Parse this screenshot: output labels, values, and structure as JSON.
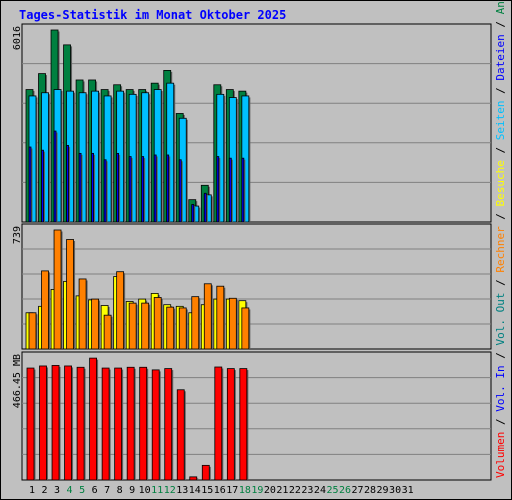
{
  "title": "Tages-Statistik im Monat Oktober 2025",
  "colors": {
    "anfragen": "#008040",
    "dateien": "#0000ff",
    "seiten": "#00c0ff",
    "besuche": "#ffff00",
    "rechner": "#ff8000",
    "volumen": "#ff0000",
    "out": "#008080",
    "in": "#0000ff",
    "weekend": "#008040",
    "weekday": "#000000",
    "separator": "#000000"
  },
  "chart_data": [
    {
      "type": "bar",
      "name": "top-panel",
      "ylabel": "6016",
      "ylim": [
        0,
        6016
      ],
      "categories": [
        "1",
        "2",
        "3",
        "4",
        "5",
        "6",
        "7",
        "8",
        "9",
        "10",
        "11",
        "12",
        "13",
        "14",
        "15",
        "16",
        "17",
        "18",
        "19",
        "20",
        "21",
        "22",
        "23",
        "24",
        "25",
        "26",
        "27",
        "28",
        "29",
        "30",
        "31"
      ],
      "weekend": [
        4,
        5,
        11,
        12,
        18,
        19,
        25,
        26
      ],
      "series": [
        {
          "name": "Anfragen",
          "values": [
            4150,
            4650,
            6016,
            5550,
            4450,
            4450,
            4150,
            4300,
            4150,
            4150,
            4350,
            4750,
            3400,
            700,
            1150,
            4300,
            4150,
            4100,
            0,
            0,
            0,
            0,
            0,
            0,
            0,
            0,
            0,
            0,
            0,
            0,
            0
          ]
        },
        {
          "name": "Dateien",
          "values": [
            2350,
            2250,
            2850,
            2400,
            2150,
            2150,
            1950,
            2150,
            2050,
            2050,
            2100,
            2100,
            1950,
            550,
            900,
            2050,
            2000,
            2000,
            0,
            0,
            0,
            0,
            0,
            0,
            0,
            0,
            0,
            0,
            0,
            0,
            0
          ]
        },
        {
          "name": "Seiten",
          "values": [
            3950,
            4050,
            4150,
            4100,
            4050,
            4100,
            3950,
            4100,
            4000,
            4050,
            4150,
            4350,
            3250,
            500,
            850,
            4000,
            3900,
            3950,
            0,
            0,
            0,
            0,
            0,
            0,
            0,
            0,
            0,
            0,
            0,
            0,
            0
          ]
        }
      ]
    },
    {
      "type": "bar",
      "name": "middle-panel",
      "ylabel": "739",
      "ylim": [
        0,
        739
      ],
      "series": [
        {
          "name": "Besuche",
          "values": [
            225,
            265,
            370,
            420,
            330,
            305,
            270,
            450,
            295,
            310,
            345,
            275,
            265,
            225,
            275,
            310,
            310,
            300,
            0,
            0,
            0,
            0,
            0,
            0,
            0,
            0,
            0,
            0,
            0,
            0,
            0
          ]
        },
        {
          "name": "Rechner",
          "values": [
            225,
            485,
            739,
            680,
            435,
            310,
            210,
            480,
            285,
            285,
            320,
            260,
            255,
            325,
            405,
            390,
            315,
            255,
            0,
            0,
            0,
            0,
            0,
            0,
            0,
            0,
            0,
            0,
            0,
            0,
            0
          ]
        }
      ]
    },
    {
      "type": "bar",
      "name": "bottom-panel",
      "ylabel": "466.45 MB",
      "ylim": [
        0,
        466.45
      ],
      "series": [
        {
          "name": "Volumen",
          "values": [
            428,
            436,
            438,
            436,
            431,
            466,
            428,
            428,
            431,
            431,
            421,
            426,
            345,
            12,
            56,
            432,
            426,
            426,
            0,
            0,
            0,
            0,
            0,
            0,
            0,
            0,
            0,
            0,
            0,
            0,
            0
          ]
        }
      ]
    }
  ],
  "legend": {
    "anfragen": "Anfragen",
    "dateien": "Dateien",
    "seiten": "Seiten",
    "besuche": "Besuche",
    "rechner": "Rechner",
    "out": "Vol. Out",
    "in": "Vol. In",
    "volumen": "Volumen",
    "sep": "/"
  }
}
